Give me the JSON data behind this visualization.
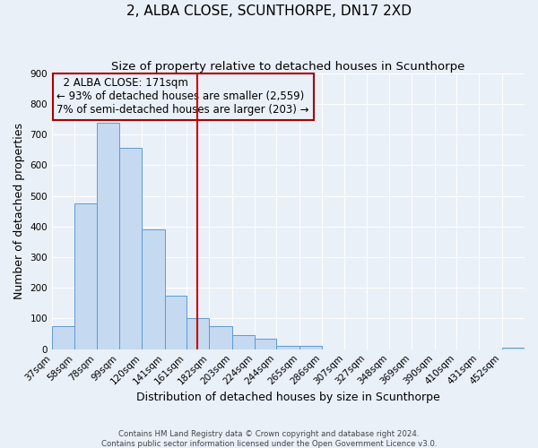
{
  "title": "2, ALBA CLOSE, SCUNTHORPE, DN17 2XD",
  "subtitle": "Size of property relative to detached houses in Scunthorpe",
  "xlabel": "Distribution of detached houses by size in Scunthorpe",
  "ylabel": "Number of detached properties",
  "footer_line1": "Contains HM Land Registry data © Crown copyright and database right 2024.",
  "footer_line2": "Contains public sector information licensed under the Open Government Licence v3.0.",
  "bin_labels": [
    "37sqm",
    "58sqm",
    "78sqm",
    "99sqm",
    "120sqm",
    "141sqm",
    "161sqm",
    "182sqm",
    "203sqm",
    "224sqm",
    "244sqm",
    "265sqm",
    "286sqm",
    "307sqm",
    "327sqm",
    "348sqm",
    "369sqm",
    "390sqm",
    "410sqm",
    "431sqm",
    "452sqm"
  ],
  "bar_values": [
    75,
    475,
    737,
    657,
    390,
    175,
    100,
    75,
    46,
    33,
    10,
    10,
    0,
    0,
    0,
    0,
    0,
    0,
    0,
    0,
    5
  ],
  "bin_edges": [
    37,
    58,
    78,
    99,
    120,
    141,
    161,
    182,
    203,
    224,
    244,
    265,
    286,
    307,
    327,
    348,
    369,
    390,
    410,
    431,
    452,
    473
  ],
  "bar_color": "#c5d9f0",
  "bar_edge_color": "#5b9bd5",
  "vline_x": 171,
  "vline_color": "#cc0000",
  "annotation_title": "2 ALBA CLOSE: 171sqm",
  "annotation_line1": "← 93% of detached houses are smaller (2,559)",
  "annotation_line2": "7% of semi-detached houses are larger (203) →",
  "annotation_box_edge": "#aa0000",
  "ylim": [
    0,
    900
  ],
  "yticks": [
    0,
    100,
    200,
    300,
    400,
    500,
    600,
    700,
    800,
    900
  ],
  "background_color": "#eaf0f8",
  "grid_color": "#ffffff",
  "title_fontsize": 11,
  "subtitle_fontsize": 9.5,
  "axis_label_fontsize": 9,
  "tick_fontsize": 7.5,
  "annotation_fontsize": 8.5
}
